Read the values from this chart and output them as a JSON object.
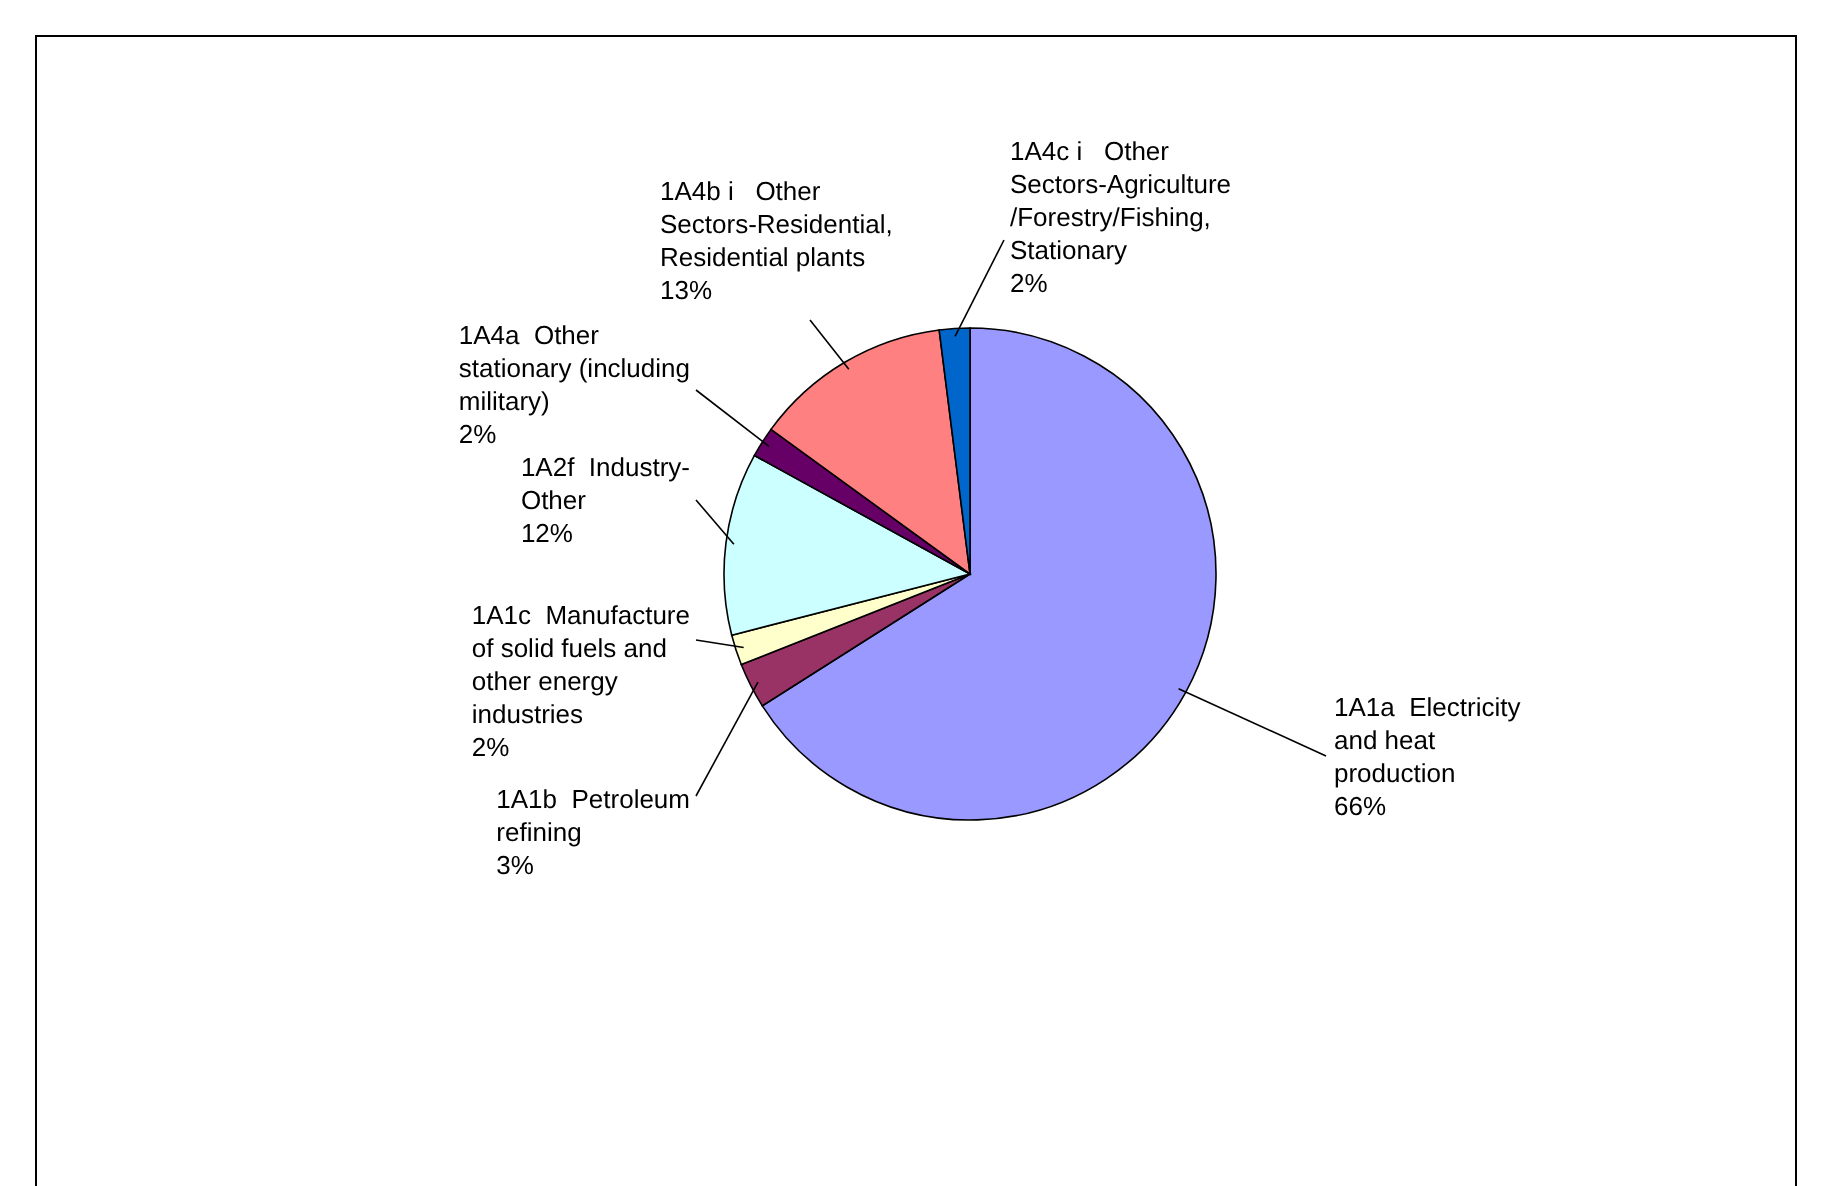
{
  "chart_data": {
    "type": "pie",
    "categories": [
      "1A1a  Electricity and heat production",
      "1A1b  Petroleum refining",
      "1A1c  Manufacture of solid fuels and other energy industries",
      "1A2f  Industry-Other",
      "1A4a  Other stationary (including military)",
      "1A4b i   Other Sectors-Residential, Residential plants",
      "1A4c i   Other Sectors-Agriculture/Forestry/Fishing, Stationary"
    ],
    "values": [
      66,
      3,
      2,
      12,
      2,
      13,
      2
    ],
    "colors": [
      "#9999ff",
      "#993366",
      "#ffffcc",
      "#ccffff",
      "#660066",
      "#ff8080",
      "#0066cc"
    ],
    "value_labels": [
      "66%",
      "3%",
      "2%",
      "12%",
      "2%",
      "13%",
      "2%"
    ]
  }
}
